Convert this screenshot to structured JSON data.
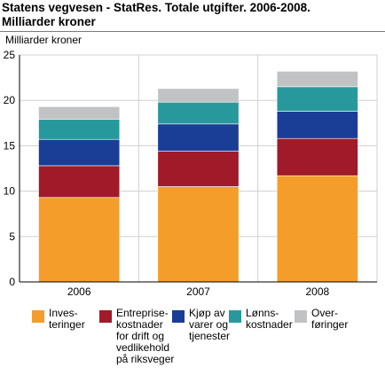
{
  "title_lines": [
    "Statens vegvesen - StatRes. Totale utgifter. 2006-2008.",
    "Milliarder kroner"
  ],
  "colors": {
    "investeringer": "#f59d2a",
    "entreprise": "#a01a2a",
    "kjop": "#1a3d96",
    "lonn": "#27999c",
    "overforinger": "#c0c2c4",
    "grid": "#d0d0d0",
    "axis": "#000000"
  },
  "chart_data": {
    "type": "bar",
    "stacked": true,
    "title": "Statens vegvesen - StatRes. Totale utgifter. 2006-2008. Milliarder kroner",
    "ylabel": "Milliarder kroner",
    "xlabel": "",
    "ylim": [
      0,
      25
    ],
    "yticks": [
      0,
      5,
      10,
      15,
      20,
      25
    ],
    "grid": true,
    "legend_position": "bottom",
    "categories": [
      "2006",
      "2007",
      "2008"
    ],
    "series": [
      {
        "name": "Inves-\nteringer",
        "color_key": "investeringer",
        "values": [
          9.3,
          10.5,
          11.7
        ]
      },
      {
        "name": "Entreprise-\nkostnader\nfor drift og\nvedlikehold\npå riksveger",
        "color_key": "entreprise",
        "values": [
          3.5,
          3.9,
          4.1
        ]
      },
      {
        "name": "Kjøp av\nvarer og\ntjenester",
        "color_key": "kjop",
        "values": [
          2.9,
          3.0,
          3.0
        ]
      },
      {
        "name": "Lønns-\nkostnader",
        "color_key": "lonn",
        "values": [
          2.2,
          2.4,
          2.7
        ]
      },
      {
        "name": "Over-\nføringer",
        "color_key": "overforinger",
        "values": [
          1.4,
          1.5,
          1.7
        ]
      }
    ]
  }
}
